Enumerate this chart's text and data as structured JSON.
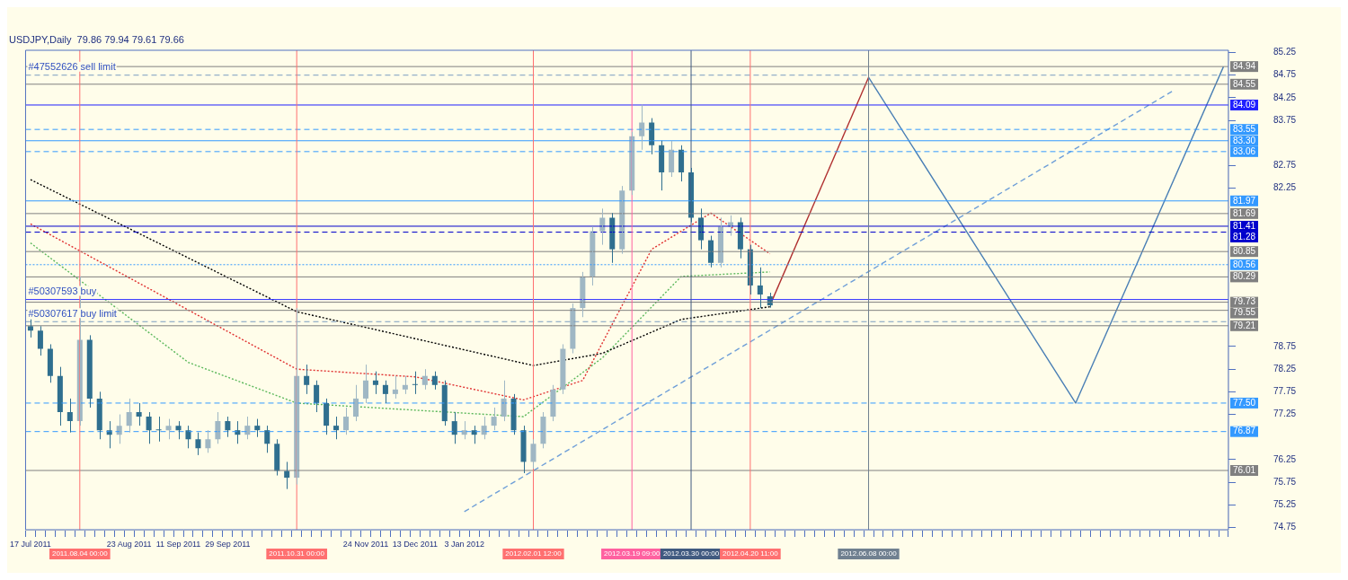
{
  "chart_data": {
    "type": "candlestick",
    "title": "USDJPY,Daily  79.86 79.94 79.61 79.66",
    "categories": [
      "17 Jul 2011",
      null,
      null,
      null,
      null,
      "2011.08.04 00:00",
      null,
      null,
      null,
      null,
      "23 Aug 2011",
      null,
      null,
      null,
      null,
      "11 Sep 2011",
      null,
      null,
      null,
      null,
      "29 Sep 2011",
      null,
      null,
      null,
      null,
      null,
      null,
      "2011.10.31 00:00",
      null,
      null,
      null,
      null,
      null,
      null,
      "24 Nov 2011",
      null,
      null,
      null,
      null,
      "13 Dec 2011",
      null,
      null,
      null,
      null,
      "3 Jan 2012",
      null,
      null,
      null,
      null,
      null,
      null,
      "2012.02.01 12:00",
      null,
      null,
      null,
      null,
      null,
      null,
      null,
      null,
      null,
      "2012.03.19 09:00",
      null,
      null,
      null,
      null,
      null,
      "2012.03.30 00:00",
      null,
      null,
      null,
      null,
      null,
      "2012.04.20 11:00",
      null,
      null,
      null,
      null,
      null,
      null,
      null,
      null,
      null,
      null,
      null,
      "2012.06.08 00:00",
      null,
      null,
      null,
      null,
      null,
      null,
      null,
      null,
      null,
      null,
      null,
      null,
      null,
      null,
      null,
      null,
      null,
      null,
      null,
      null,
      null,
      null,
      null,
      null,
      null,
      null,
      null,
      null,
      null,
      null,
      null,
      null,
      null,
      null,
      null,
      null
    ],
    "ohlc": [
      [
        79.2,
        79.35,
        78.95,
        79.1
      ],
      [
        79.1,
        79.2,
        78.55,
        78.7
      ],
      [
        78.7,
        78.8,
        77.95,
        78.1
      ],
      [
        78.1,
        78.3,
        77.0,
        77.3
      ],
      [
        77.3,
        77.6,
        76.85,
        77.1
      ],
      [
        77.1,
        80.3,
        77.0,
        78.9
      ],
      [
        78.9,
        79.0,
        77.4,
        77.6
      ],
      [
        77.6,
        77.75,
        76.7,
        76.9
      ],
      [
        76.9,
        77.1,
        76.5,
        76.8
      ],
      [
        76.8,
        77.25,
        76.6,
        77.0
      ],
      [
        77.0,
        77.6,
        76.85,
        77.3
      ],
      [
        77.3,
        77.5,
        77.0,
        77.2
      ],
      [
        77.2,
        77.3,
        76.6,
        76.9
      ],
      [
        76.9,
        77.2,
        76.65,
        76.9
      ],
      [
        76.9,
        77.15,
        76.7,
        77.0
      ],
      [
        77.0,
        77.1,
        76.7,
        76.9
      ],
      [
        76.9,
        77.0,
        76.5,
        76.7
      ],
      [
        76.7,
        76.85,
        76.35,
        76.5
      ],
      [
        76.5,
        76.9,
        76.4,
        76.7
      ],
      [
        76.7,
        77.3,
        76.6,
        77.1
      ],
      [
        77.1,
        77.2,
        76.75,
        76.9
      ],
      [
        76.9,
        77.1,
        76.6,
        76.8
      ],
      [
        76.8,
        77.2,
        76.7,
        77.0
      ],
      [
        77.0,
        77.15,
        76.75,
        76.9
      ],
      [
        76.9,
        77.0,
        76.4,
        76.6
      ],
      [
        76.6,
        76.7,
        75.9,
        76.0
      ],
      [
        76.0,
        76.2,
        75.6,
        75.85
      ],
      [
        75.85,
        79.6,
        75.7,
        78.1
      ],
      [
        78.1,
        78.35,
        77.7,
        77.9
      ],
      [
        77.9,
        78.0,
        77.3,
        77.5
      ],
      [
        77.5,
        77.6,
        76.8,
        77.0
      ],
      [
        77.0,
        77.2,
        76.7,
        76.9
      ],
      [
        76.9,
        77.4,
        76.8,
        77.2
      ],
      [
        77.2,
        77.9,
        77.1,
        77.6
      ],
      [
        77.6,
        78.35,
        77.5,
        78.0
      ],
      [
        78.0,
        78.2,
        77.7,
        77.9
      ],
      [
        77.9,
        78.0,
        77.5,
        77.7
      ],
      [
        77.7,
        78.1,
        77.6,
        77.8
      ],
      [
        77.8,
        78.1,
        77.7,
        77.9
      ],
      [
        77.9,
        78.2,
        77.7,
        77.9
      ],
      [
        77.9,
        78.25,
        77.8,
        78.1
      ],
      [
        78.1,
        78.2,
        77.8,
        77.9
      ],
      [
        77.9,
        78.0,
        77.0,
        77.1
      ],
      [
        77.1,
        77.3,
        76.6,
        76.8
      ],
      [
        76.8,
        77.1,
        76.7,
        76.9
      ],
      [
        76.9,
        77.0,
        76.6,
        76.8
      ],
      [
        76.8,
        77.2,
        76.7,
        77.0
      ],
      [
        77.0,
        77.4,
        76.9,
        77.2
      ],
      [
        77.2,
        78.0,
        77.1,
        77.6
      ],
      [
        77.6,
        77.7,
        76.8,
        76.9
      ],
      [
        76.9,
        77.0,
        75.95,
        76.2
      ],
      [
        76.2,
        76.7,
        76.05,
        76.6
      ],
      [
        76.6,
        77.3,
        76.5,
        77.2
      ],
      [
        77.2,
        77.9,
        77.1,
        77.8
      ],
      [
        77.8,
        78.8,
        77.7,
        78.7
      ],
      [
        78.7,
        79.7,
        78.6,
        79.6
      ],
      [
        79.6,
        80.4,
        79.4,
        80.3
      ],
      [
        80.3,
        81.4,
        80.1,
        81.3
      ],
      [
        81.3,
        81.8,
        81.0,
        81.6
      ],
      [
        81.6,
        81.7,
        80.6,
        80.9
      ],
      [
        80.9,
        82.3,
        80.8,
        82.2
      ],
      [
        82.2,
        83.5,
        82.1,
        83.4
      ],
      [
        83.4,
        84.1,
        83.1,
        83.7
      ],
      [
        83.7,
        83.8,
        83.0,
        83.2
      ],
      [
        83.2,
        83.3,
        82.2,
        82.6
      ],
      [
        82.6,
        83.3,
        82.5,
        83.1
      ],
      [
        83.1,
        83.2,
        82.4,
        82.6
      ],
      [
        82.6,
        82.7,
        81.5,
        81.6
      ],
      [
        81.6,
        81.8,
        80.9,
        81.1
      ],
      [
        81.1,
        81.2,
        80.5,
        80.6
      ],
      [
        80.6,
        81.6,
        80.5,
        81.4
      ],
      [
        81.4,
        81.65,
        81.2,
        81.5
      ],
      [
        81.5,
        81.6,
        80.7,
        80.9
      ],
      [
        80.9,
        81.0,
        79.9,
        80.1
      ],
      [
        80.1,
        80.5,
        79.6,
        79.9
      ],
      [
        79.86,
        79.94,
        79.61,
        79.66
      ],
      null,
      null,
      null,
      null,
      null,
      null,
      null,
      null,
      null,
      null,
      null,
      null,
      null,
      null,
      null,
      null,
      null,
      null,
      null,
      null,
      null,
      null,
      null,
      null,
      null,
      null,
      null,
      null,
      null,
      null,
      null,
      null,
      null,
      null,
      null,
      null,
      null,
      null,
      null,
      null,
      null,
      null,
      null,
      null,
      null,
      null
    ],
    "colors": [
      "#2f6f8f",
      "#2f6f8f",
      "#2f6f8f",
      "#2f6f8f",
      "#2f6f8f",
      "#9fb7c4",
      "#2f6f8f",
      "#2f6f8f",
      "#2f6f8f",
      "#9fb7c4",
      "#9fb7c4",
      "#2f6f8f",
      "#2f6f8f",
      "#2f6f8f",
      "#9fb7c4",
      "#2f6f8f",
      "#2f6f8f",
      "#2f6f8f",
      "#9fb7c4",
      "#9fb7c4",
      "#2f6f8f",
      "#2f6f8f",
      "#9fb7c4",
      "#2f6f8f",
      "#2f6f8f",
      "#2f6f8f",
      "#2f6f8f",
      "#9fb7c4",
      "#2f6f8f",
      "#2f6f8f",
      "#2f6f8f",
      "#2f6f8f",
      "#9fb7c4",
      "#9fb7c4",
      "#9fb7c4",
      "#2f6f8f",
      "#2f6f8f",
      "#9fb7c4",
      "#9fb7c4",
      "#2f6f8f",
      "#9fb7c4",
      "#2f6f8f",
      "#2f6f8f",
      "#2f6f8f",
      "#9fb7c4",
      "#2f6f8f",
      "#9fb7c4",
      "#9fb7c4",
      "#9fb7c4",
      "#2f6f8f",
      "#2f6f8f",
      "#9fb7c4",
      "#9fb7c4",
      "#9fb7c4",
      "#9fb7c4",
      "#9fb7c4",
      "#9fb7c4",
      "#9fb7c4",
      "#9fb7c4",
      "#2f6f8f",
      "#9fb7c4",
      "#9fb7c4",
      "#9fb7c4",
      "#2f6f8f",
      "#2f6f8f",
      "#9fb7c4",
      "#2f6f8f",
      "#2f6f8f",
      "#2f6f8f",
      "#2f6f8f",
      "#9fb7c4",
      "#9fb7c4",
      "#2f6f8f",
      "#2f6f8f",
      "#2f6f8f",
      "#2f6f8f",
      null,
      null,
      null,
      null,
      null,
      null,
      null,
      null,
      null,
      null,
      null,
      null,
      null,
      null,
      null,
      null,
      null,
      null,
      null,
      null,
      null,
      null,
      null,
      null,
      null,
      null,
      null,
      null,
      null,
      null,
      null,
      null,
      null,
      null,
      null,
      null,
      null,
      null,
      null,
      null,
      null,
      null,
      null,
      null,
      null,
      null
    ],
    "ylim": [
      74.7,
      85.3
    ],
    "yticks": [
      74.75,
      75.25,
      75.75,
      76.25,
      77.25,
      77.75,
      78.25,
      78.75,
      82.25,
      82.75,
      83.75,
      84.25,
      84.75,
      85.25
    ],
    "grid": false,
    "legend": false,
    "marker": "none",
    "series": [
      {
        "type": "line",
        "color": "#000000",
        "line_style": "dotted",
        "values": [
          82.44,
          null,
          null,
          null,
          null,
          null,
          null,
          null,
          null,
          null,
          null,
          null,
          null,
          null,
          null,
          null,
          null,
          null,
          null,
          null,
          null,
          null,
          null,
          null,
          null,
          null,
          null,
          79.52,
          null,
          null,
          null,
          null,
          null,
          null,
          null,
          null,
          null,
          null,
          null,
          null,
          null,
          null,
          null,
          null,
          null,
          null,
          null,
          null,
          null,
          null,
          null,
          78.33,
          null,
          null,
          null,
          null,
          null,
          null,
          78.6,
          null,
          null,
          null,
          null,
          null,
          null,
          null,
          79.35,
          null,
          null,
          null,
          null,
          null,
          null,
          null,
          null,
          79.63,
          null,
          null,
          null,
          null,
          null,
          null,
          null,
          null,
          null,
          null,
          null,
          null,
          null,
          null,
          null,
          null,
          null,
          null,
          null,
          null,
          null,
          null,
          null,
          null,
          null,
          null,
          null,
          null,
          null,
          null,
          null,
          null,
          null,
          null,
          null,
          null,
          null,
          null,
          null,
          null,
          null,
          null,
          null,
          null,
          null,
          null
        ]
      },
      {
        "type": "line",
        "color": "#e03030",
        "line_style": "dotted",
        "values": [
          81.46,
          null,
          null,
          null,
          null,
          null,
          null,
          null,
          null,
          null,
          null,
          null,
          null,
          null,
          null,
          null,
          null,
          null,
          null,
          null,
          null,
          null,
          null,
          null,
          null,
          null,
          null,
          78.25,
          null,
          null,
          null,
          null,
          null,
          null,
          null,
          null,
          null,
          null,
          null,
          78.08,
          null,
          null,
          null,
          null,
          null,
          null,
          null,
          null,
          null,
          null,
          77.57,
          null,
          null,
          null,
          null,
          null,
          78.0,
          null,
          null,
          null,
          null,
          null,
          null,
          80.9,
          null,
          null,
          null,
          null,
          null,
          81.7,
          null,
          null,
          null,
          null,
          null,
          80.8,
          null,
          null,
          null,
          null,
          null,
          null,
          null,
          null,
          null,
          null,
          null,
          null,
          null,
          null,
          null,
          null,
          null,
          null,
          null,
          null,
          null,
          null,
          null,
          null,
          null,
          null,
          null,
          null,
          null,
          null,
          null,
          null,
          null,
          null,
          null,
          null,
          null,
          null,
          null,
          null,
          null,
          null,
          null,
          null,
          null,
          null
        ]
      },
      {
        "type": "line",
        "color": "#5cb85c",
        "line_style": "dotted",
        "values": [
          81.04,
          null,
          null,
          null,
          null,
          null,
          null,
          null,
          null,
          null,
          null,
          null,
          null,
          null,
          null,
          null,
          78.4,
          null,
          null,
          null,
          null,
          null,
          null,
          null,
          null,
          null,
          null,
          77.5,
          null,
          null,
          null,
          null,
          null,
          null,
          null,
          null,
          null,
          null,
          null,
          null,
          null,
          null,
          null,
          null,
          null,
          null,
          null,
          null,
          null,
          null,
          77.2,
          null,
          null,
          null,
          null,
          null,
          null,
          null,
          78.5,
          null,
          null,
          null,
          null,
          null,
          null,
          null,
          80.3,
          null,
          null,
          null,
          null,
          null,
          null,
          null,
          null,
          80.4,
          null,
          null,
          null,
          null,
          null,
          null,
          null,
          null,
          null,
          null,
          null,
          null,
          null,
          null,
          null,
          null,
          null,
          null,
          null,
          null,
          null,
          null,
          null,
          null,
          null,
          null,
          null,
          null,
          null,
          null,
          null,
          null,
          null,
          null,
          null,
          null,
          null,
          null,
          null,
          null,
          null,
          null,
          null,
          null,
          null,
          null
        ]
      },
      {
        "type": "line",
        "color": "#6f9fd8",
        "line_style": "dashed",
        "values": [
          null,
          null,
          null,
          null,
          null,
          null,
          null,
          null,
          null,
          null,
          null,
          null,
          null,
          null,
          null,
          null,
          null,
          null,
          null,
          null,
          null,
          null,
          null,
          null,
          null,
          null,
          null,
          null,
          null,
          null,
          null,
          null,
          null,
          null,
          null,
          null,
          null,
          null,
          null,
          null,
          null,
          null,
          null,
          null,
          75.1,
          null,
          null,
          null,
          null,
          null,
          null,
          null,
          null,
          null,
          null,
          null,
          null,
          null,
          null,
          null,
          null,
          null,
          null,
          null,
          null,
          null,
          null,
          null,
          null,
          null,
          null,
          null,
          null,
          null,
          null,
          null,
          null,
          null,
          null,
          null,
          null,
          null,
          null,
          null,
          null,
          null,
          null,
          null,
          null,
          null,
          null,
          null,
          null,
          null,
          null,
          null,
          null,
          null,
          null,
          null,
          null,
          null,
          null,
          null,
          null,
          null,
          null,
          null,
          null,
          null,
          null,
          null,
          null,
          null,
          null,
          null,
          84.42,
          null,
          null,
          null,
          null,
          null
        ]
      },
      {
        "type": "line",
        "color": "#b03030",
        "line_style": "solid",
        "values": [
          null,
          null,
          null,
          null,
          null,
          null,
          null,
          null,
          null,
          null,
          null,
          null,
          null,
          null,
          null,
          null,
          null,
          null,
          null,
          null,
          null,
          null,
          null,
          null,
          null,
          null,
          null,
          null,
          null,
          null,
          null,
          null,
          null,
          null,
          null,
          null,
          null,
          null,
          null,
          null,
          null,
          null,
          null,
          null,
          null,
          null,
          null,
          null,
          null,
          null,
          null,
          null,
          null,
          null,
          null,
          null,
          null,
          null,
          null,
          null,
          null,
          null,
          null,
          null,
          null,
          null,
          null,
          null,
          null,
          null,
          null,
          null,
          null,
          null,
          null,
          79.66,
          null,
          null,
          null,
          null,
          null,
          null,
          null,
          null,
          null,
          84.7,
          null,
          null,
          null,
          null,
          null,
          null,
          null,
          null,
          null,
          null,
          null,
          null,
          null,
          null,
          null,
          null,
          null,
          null,
          null,
          null,
          null,
          null,
          null,
          null,
          null,
          null,
          null,
          null,
          null,
          null,
          null,
          null,
          null,
          null,
          null,
          null
        ]
      },
      {
        "type": "line",
        "color": "#4a7fb5",
        "line_style": "solid",
        "values": [
          null,
          null,
          null,
          null,
          null,
          null,
          null,
          null,
          null,
          null,
          null,
          null,
          null,
          null,
          null,
          null,
          null,
          null,
          null,
          null,
          null,
          null,
          null,
          null,
          null,
          null,
          null,
          null,
          null,
          null,
          null,
          null,
          null,
          null,
          null,
          null,
          null,
          null,
          null,
          null,
          null,
          null,
          null,
          null,
          null,
          null,
          null,
          null,
          null,
          null,
          null,
          null,
          null,
          null,
          null,
          null,
          null,
          null,
          null,
          null,
          null,
          null,
          null,
          null,
          null,
          null,
          null,
          null,
          null,
          null,
          null,
          null,
          null,
          null,
          null,
          null,
          null,
          null,
          null,
          null,
          null,
          null,
          null,
          null,
          null,
          84.7,
          null,
          null,
          null,
          null,
          null,
          null,
          null,
          null,
          null,
          null,
          null,
          null,
          null,
          null,
          null,
          null,
          null,
          null,
          null,
          null,
          77.5,
          null,
          null,
          null,
          null,
          null,
          null,
          null,
          null,
          null,
          null,
          null,
          null,
          null,
          null,
          84.94
        ]
      }
    ],
    "ref_lines": [
      {
        "axis": "y",
        "value": 84.94,
        "label": "84.94",
        "color": "#808080",
        "line_style": "solid"
      },
      {
        "axis": "y",
        "value": 84.75,
        "color": "#7a9cc0",
        "line_style": "dashed"
      },
      {
        "axis": "y",
        "value": 84.55,
        "label": "84.55",
        "color": "#808080",
        "line_style": "solid"
      },
      {
        "axis": "y",
        "value": 84.09,
        "label": "84.09",
        "color": "#2020ff",
        "line_style": "solid"
      },
      {
        "axis": "y",
        "value": 83.55,
        "label": "83.55",
        "color": "#3399ff",
        "line_style": "dashed"
      },
      {
        "axis": "y",
        "value": 83.3,
        "label": "83.30",
        "color": "#3399ff",
        "line_style": "solid"
      },
      {
        "axis": "y",
        "value": 83.06,
        "label": "83.06",
        "color": "#3399ff",
        "line_style": "dashed"
      },
      {
        "axis": "y",
        "value": 81.97,
        "label": "81.97",
        "color": "#3399ff",
        "line_style": "solid"
      },
      {
        "axis": "y",
        "value": 81.69,
        "label": "81.69",
        "color": "#808080",
        "line_style": "solid"
      },
      {
        "axis": "y",
        "value": 81.41,
        "label": "81.41",
        "color": "#0000cc",
        "line_style": "solid"
      },
      {
        "axis": "y",
        "value": 81.28,
        "label": "81.28",
        "color": "#0000cc",
        "line_style": "dashed"
      },
      {
        "axis": "y",
        "value": 80.85,
        "label": "80.85",
        "color": "#808080",
        "line_style": "solid"
      },
      {
        "axis": "y",
        "value": 80.56,
        "label": "80.56",
        "color": "#3399ff",
        "line_style": "dotted"
      },
      {
        "axis": "y",
        "value": 80.29,
        "label": "80.29",
        "color": "#808080",
        "line_style": "solid"
      },
      {
        "axis": "y",
        "value": 79.79,
        "color": "#3030ff",
        "line_style": "solid"
      },
      {
        "axis": "y",
        "value": 79.73,
        "label": "79.73",
        "color": "#808080",
        "line_style": "solid"
      },
      {
        "axis": "y",
        "value": 79.55,
        "label": "79.55",
        "color": "#808080",
        "line_style": "solid"
      },
      {
        "axis": "y",
        "value": 79.3,
        "color": "#7a9cc0",
        "line_style": "dashed"
      },
      {
        "axis": "y",
        "value": 79.21,
        "label": "79.21",
        "color": "#808080",
        "line_style": "solid"
      },
      {
        "axis": "y",
        "value": 77.5,
        "label": "77.50",
        "color": "#3399ff",
        "line_style": "dashed"
      },
      {
        "axis": "y",
        "value": 76.87,
        "label": "76.87",
        "color": "#3399ff",
        "line_style": "dashed"
      },
      {
        "axis": "y",
        "value": 76.01,
        "label": "76.01",
        "color": "#808080",
        "line_style": "solid"
      },
      {
        "axis": "x",
        "value": "2011.08.04 00:00",
        "color": "#ff7070"
      },
      {
        "axis": "x",
        "value": "2011.10.31 00:00",
        "color": "#ff7070"
      },
      {
        "axis": "x",
        "value": "2012.02.01 12:00",
        "color": "#ff7070"
      },
      {
        "axis": "x",
        "value": "2012.03.19 09:00",
        "color": "#ff60a0"
      },
      {
        "axis": "x",
        "value": "2012.03.30 00:00",
        "color": "#405a80"
      },
      {
        "axis": "x",
        "value": "2012.04.20 11:00",
        "color": "#ff7070"
      },
      {
        "axis": "x",
        "value": "2012.06.08 00:00",
        "color": "#708090"
      }
    ],
    "annotations": [
      {
        "text": "#47552626 sell limit",
        "x": "17 Jul 2011",
        "y": 84.75
      },
      {
        "text": "#50307593 buy",
        "x": "17 Jul 2011",
        "y": 79.79
      },
      {
        "text": "#50307617 buy limit",
        "x": "17 Jul 2011",
        "y": 79.3
      }
    ]
  }
}
